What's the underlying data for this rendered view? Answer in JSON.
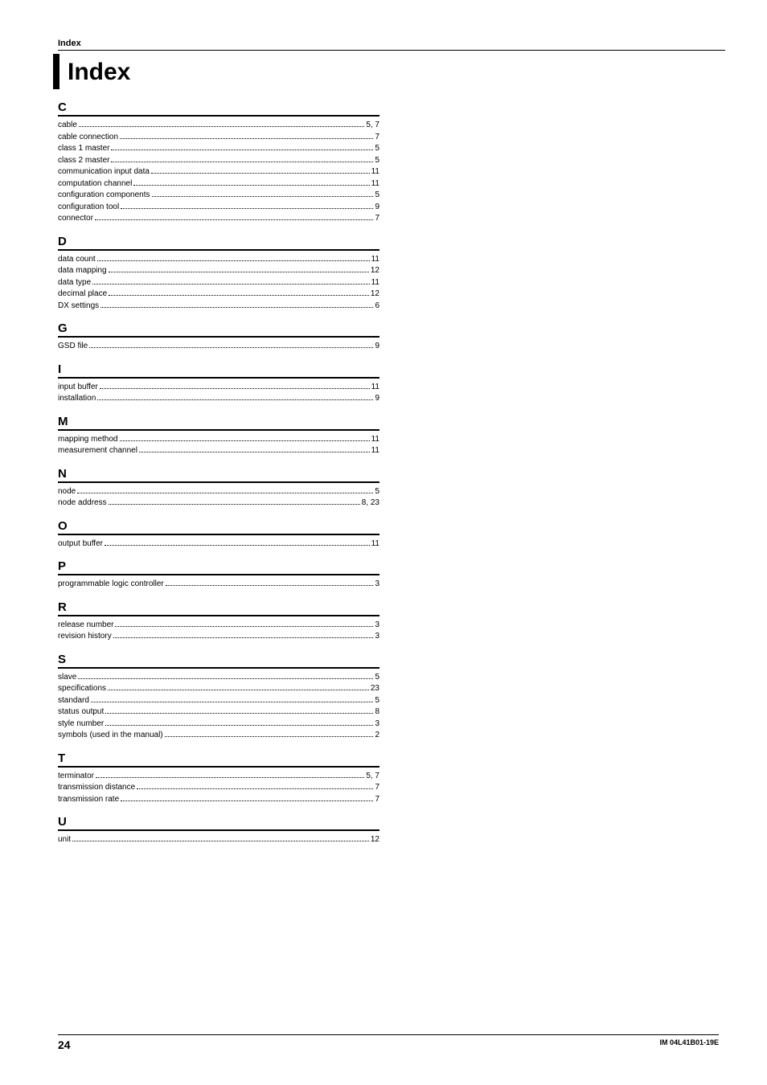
{
  "running_header": "Index",
  "title": "Index",
  "sections": [
    {
      "head": "C",
      "entries": [
        {
          "term": "cable",
          "pages": "5, 7"
        },
        {
          "term": "cable connection",
          "pages": "7"
        },
        {
          "term": "class 1 master",
          "pages": "5"
        },
        {
          "term": "class 2 master",
          "pages": "5"
        },
        {
          "term": "communication input data",
          "pages": "11"
        },
        {
          "term": "computation channel",
          "pages": "11"
        },
        {
          "term": "configuration components",
          "pages": "5"
        },
        {
          "term": "configuration tool",
          "pages": "9"
        },
        {
          "term": "connector",
          "pages": "7"
        }
      ]
    },
    {
      "head": "D",
      "entries": [
        {
          "term": "data count",
          "pages": "11"
        },
        {
          "term": "data mapping",
          "pages": "12"
        },
        {
          "term": "data type",
          "pages": "11"
        },
        {
          "term": "decimal place",
          "pages": "12"
        },
        {
          "term": "DX settings",
          "pages": "6"
        }
      ]
    },
    {
      "head": "G",
      "entries": [
        {
          "term": "GSD file",
          "pages": "9"
        }
      ]
    },
    {
      "head": "I",
      "entries": [
        {
          "term": "input buffer",
          "pages": "11"
        },
        {
          "term": "installation",
          "pages": "9"
        }
      ]
    },
    {
      "head": "M",
      "entries": [
        {
          "term": "mapping method",
          "pages": "11"
        },
        {
          "term": "measurement channel",
          "pages": "11"
        }
      ]
    },
    {
      "head": "N",
      "entries": [
        {
          "term": "node",
          "pages": "5"
        },
        {
          "term": "node address",
          "pages": "8, 23"
        }
      ]
    },
    {
      "head": "O",
      "entries": [
        {
          "term": "output buffer",
          "pages": "11"
        }
      ]
    },
    {
      "head": "P",
      "entries": [
        {
          "term": "programmable logic controller",
          "pages": "3"
        }
      ]
    },
    {
      "head": "R",
      "entries": [
        {
          "term": "release number",
          "pages": "3"
        },
        {
          "term": "revision history",
          "pages": "3"
        }
      ]
    },
    {
      "head": "S",
      "entries": [
        {
          "term": "slave",
          "pages": "5"
        },
        {
          "term": "specifications",
          "pages": "23"
        },
        {
          "term": "standard",
          "pages": "5"
        },
        {
          "term": "status output",
          "pages": "8"
        },
        {
          "term": "style number",
          "pages": "3"
        },
        {
          "term": "symbols (used in the manual)",
          "pages": "2"
        }
      ]
    },
    {
      "head": "T",
      "entries": [
        {
          "term": "terminator",
          "pages": "5, 7"
        },
        {
          "term": "transmission distance",
          "pages": "7"
        },
        {
          "term": "transmission rate",
          "pages": "7"
        }
      ]
    },
    {
      "head": "U",
      "entries": [
        {
          "term": "unit",
          "pages": "12"
        }
      ]
    }
  ],
  "footer": {
    "page_number": "24",
    "doc_id": "IM 04L41B01-19E"
  }
}
